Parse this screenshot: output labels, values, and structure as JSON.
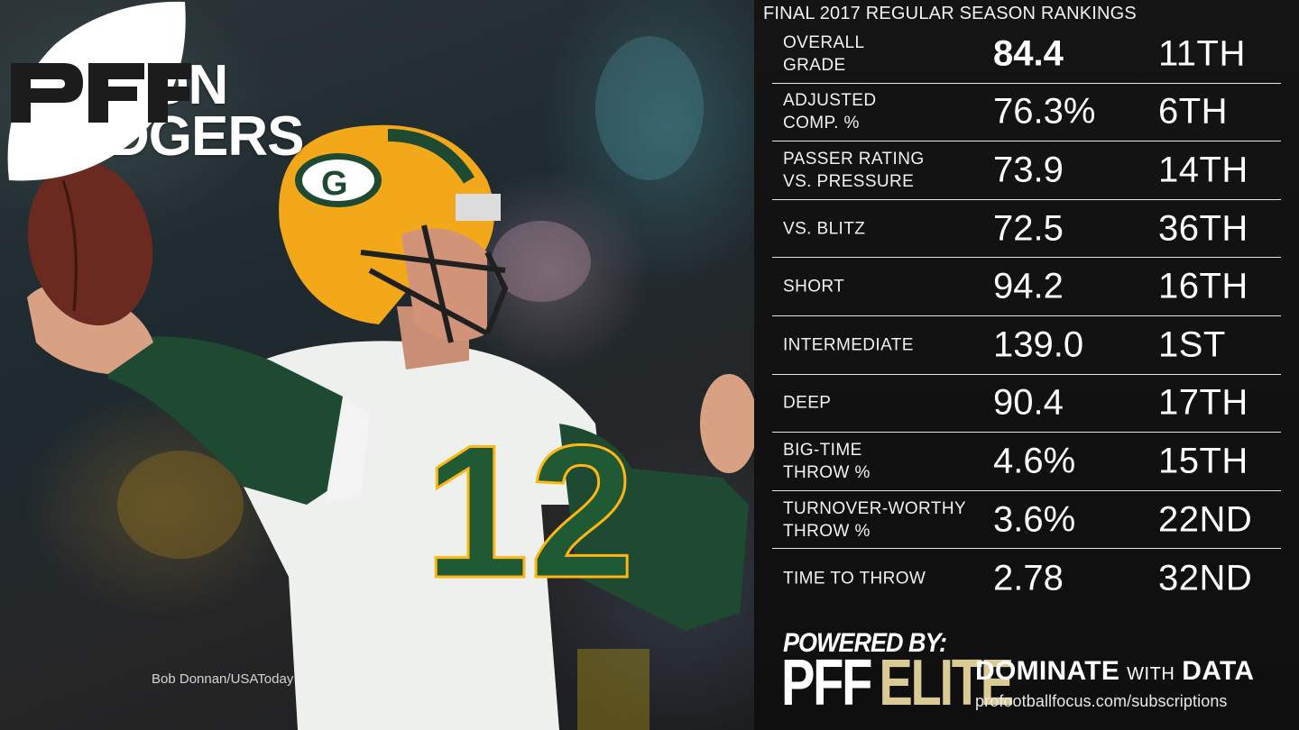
{
  "player": {
    "first_name": "AARON",
    "last_name": "RODGERS",
    "jersey_number": "12",
    "helmet_letter": "G"
  },
  "logo": {
    "brand": "PFF"
  },
  "photo_credit": "Bob Donnan/USAToday",
  "panel": {
    "title": "FINAL 2017 REGULAR SEASON RANKINGS",
    "rows": [
      {
        "label": "OVERALL\nGRADE",
        "value": "84.4",
        "rank": "11TH"
      },
      {
        "label": "ADJUSTED\nCOMP. %",
        "value": "76.3%",
        "rank": "6TH"
      },
      {
        "label": "PASSER RATING\nVS. PRESSURE",
        "value": "73.9",
        "rank": "14TH"
      },
      {
        "label": "VS. BLITZ",
        "value": "72.5",
        "rank": "36TH"
      },
      {
        "label": "SHORT",
        "value": "94.2",
        "rank": "16TH"
      },
      {
        "label": "INTERMEDIATE",
        "value": "139.0",
        "rank": "1ST"
      },
      {
        "label": "DEEP",
        "value": "90.4",
        "rank": "17TH"
      },
      {
        "label": "BIG-TIME\nTHROW %",
        "value": "4.6%",
        "rank": "15TH"
      },
      {
        "label": "TURNOVER-WORTHY\nTHROW %",
        "value": "3.6%",
        "rank": "22ND"
      },
      {
        "label": "TIME TO THROW",
        "value": "2.78",
        "rank": "32ND"
      }
    ]
  },
  "footer": {
    "powered_by": "POWERED BY:",
    "pff": "PFF",
    "elite": "ELITE",
    "dominate": "DOMINATE",
    "with": "WITH",
    "data": "DATA",
    "url": "profootballfocus.com/subscriptions"
  },
  "colors": {
    "packers_green": "#203731",
    "packers_gold": "#ffb612",
    "elite_gold": "#d9cb93",
    "panel_bg": "#121212"
  }
}
